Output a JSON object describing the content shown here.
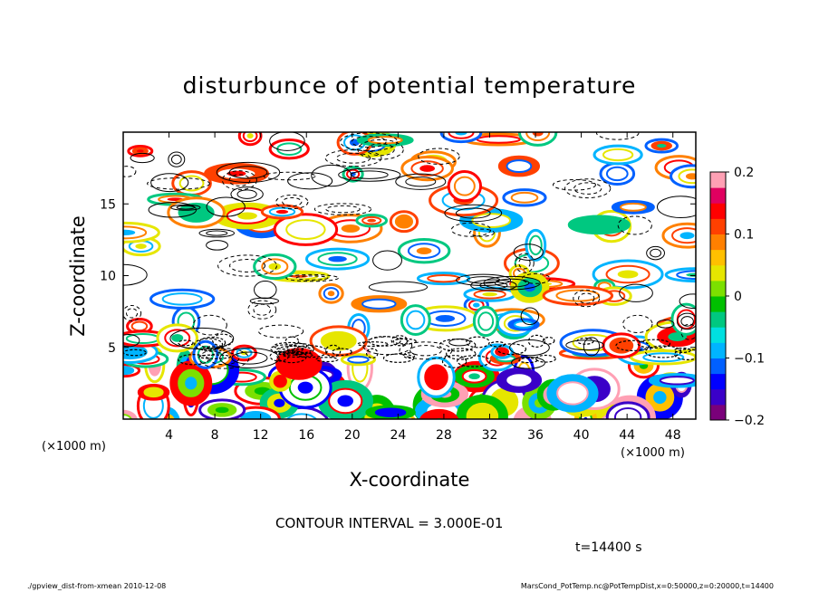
{
  "chart_data": {
    "type": "heatmap",
    "title": "disturbunce of potential temperature",
    "xlabel": "X-coordinate",
    "ylabel": "Z-coordinate",
    "x_unit": "(×1000 m)",
    "z_unit": "(×1000 m)",
    "xlim": [
      0,
      50
    ],
    "ylim": [
      0,
      20
    ],
    "x_ticks": [
      4,
      8,
      12,
      16,
      20,
      24,
      28,
      32,
      36,
      40,
      44,
      48
    ],
    "y_ticks": [
      5,
      10,
      15
    ],
    "colorbar": {
      "range": [
        -0.2,
        0.2
      ],
      "tick_labels": [
        "0.2",
        "0.1",
        "0",
        "-0.1",
        "-0.2"
      ],
      "colors": [
        "#7a007a",
        "#3a00c8",
        "#0000ff",
        "#0060ff",
        "#00b4ff",
        "#00e0e0",
        "#00c880",
        "#00c000",
        "#7ce000",
        "#e6e600",
        "#ffc000",
        "#ff8000",
        "#ff4000",
        "#ff0000",
        "#e00060",
        "#ffa0b4"
      ]
    },
    "contour_interval_label": "CONTOUR INTERVAL = 3.000E-01",
    "time_label": "t=14400 s"
  },
  "footer": {
    "left": "./gpview_dist-from-xmean  2010-12-08",
    "right": "MarsCond_PotTemp.nc@PotTempDist,x=0:50000,z=0:20000,t=14400"
  }
}
